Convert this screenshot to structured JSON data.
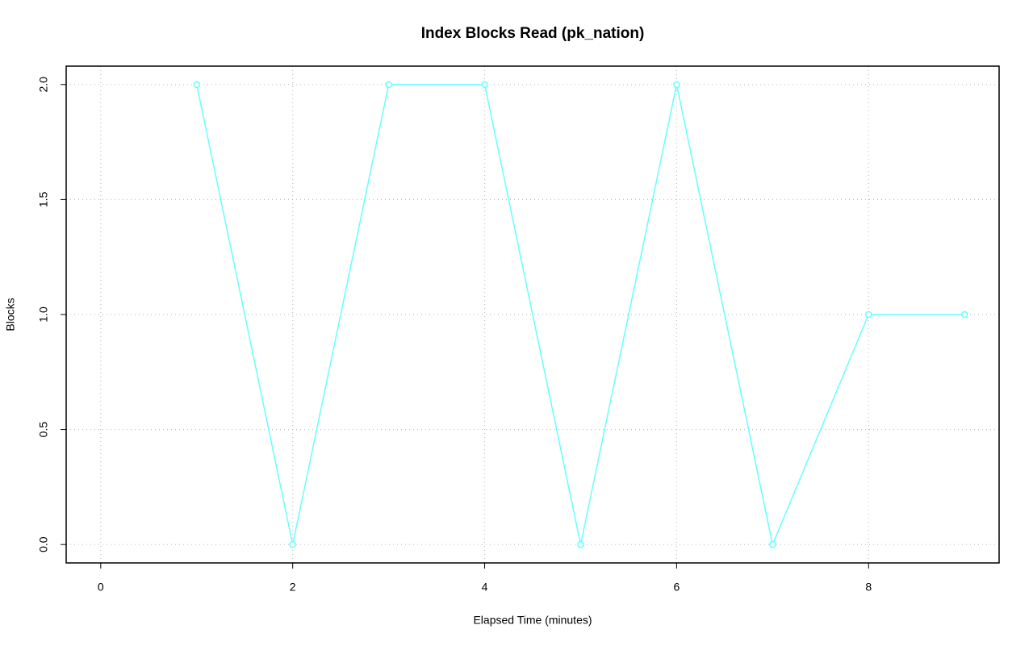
{
  "chart_data": {
    "type": "line",
    "title": "Index Blocks Read (pk_nation)",
    "x_label": "Elapsed Time (minutes)",
    "y_label": "Blocks",
    "x": [
      1,
      2,
      3,
      4,
      5,
      6,
      7,
      8,
      9
    ],
    "values": [
      2,
      0,
      2,
      2,
      0,
      2,
      0,
      1,
      1
    ],
    "color": "#66ffff",
    "xlim": [
      -0.36,
      9.36
    ],
    "ylim": [
      -0.08,
      2.08
    ],
    "xticks": [
      0,
      2,
      4,
      6,
      8
    ],
    "yticks": [
      {
        "value": 0,
        "label": "0.0"
      },
      {
        "value": 0.5,
        "label": "0.5"
      },
      {
        "value": 1,
        "label": "1.0"
      },
      {
        "value": 1.5,
        "label": "1.5"
      },
      {
        "value": 2,
        "label": "2.0"
      }
    ],
    "grid": true
  }
}
